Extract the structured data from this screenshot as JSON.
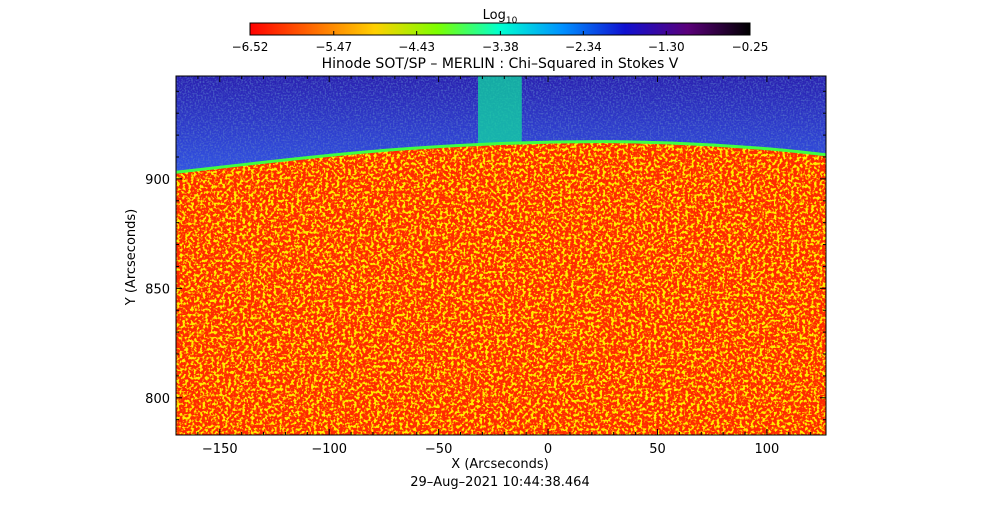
{
  "chart_data": {
    "type": "heatmap",
    "title": "Hinode SOT/SP – MERLIN : Chi–Squared in Stokes V",
    "xlabel": "X (Arcseconds)",
    "ylabel": "Y (Arcseconds)",
    "timestamp": "29–Aug–2021 10:44:38.464",
    "xlim": [
      -170,
      127
    ],
    "ylim": [
      783,
      947
    ],
    "x_ticks": [
      -150,
      -100,
      -50,
      0,
      50,
      100
    ],
    "x_tick_labels": [
      "−150",
      "−100",
      "−50",
      "0",
      "50",
      "100"
    ],
    "y_ticks": [
      800,
      850,
      900
    ],
    "y_tick_labels": [
      "800",
      "850",
      "900"
    ],
    "colorbar": {
      "label_base": "Log",
      "label_sub": "10",
      "range": [
        -6.52,
        -0.25
      ],
      "ticks": [
        -6.52,
        -5.47,
        -4.43,
        -3.38,
        -2.34,
        -1.3,
        -0.25
      ],
      "tick_labels": [
        "−6.52",
        "−5.47",
        "−4.43",
        "−3.38",
        "−2.34",
        "−1.30",
        "−0.25"
      ],
      "colors": [
        "#ff0000",
        "#ff6a00",
        "#ffd000",
        "#7cff00",
        "#00ffd0",
        "#0090ff",
        "#1010d0",
        "#5a007a",
        "#000000"
      ]
    },
    "limb": {
      "description": "solar limb edge",
      "points": [
        [
          -170,
          903
        ],
        [
          -100,
          911
        ],
        [
          -50,
          915
        ],
        [
          0,
          917
        ],
        [
          50,
          917
        ],
        [
          100,
          914
        ],
        [
          127,
          911
        ]
      ]
    },
    "regions": {
      "disk_value_log10": -6.1,
      "limb_value_log10": -3.4,
      "off_limb_value_log10": -2.9,
      "upper_off_limb_value_log10": -1.6
    }
  }
}
